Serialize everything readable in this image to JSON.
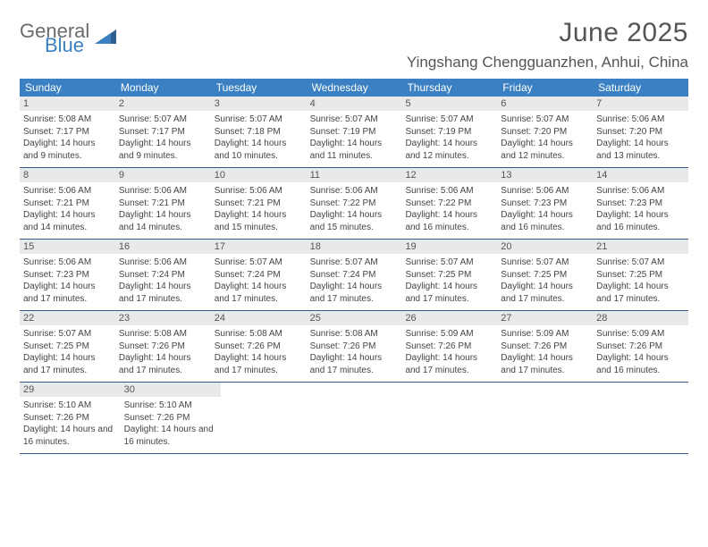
{
  "brand": {
    "line1": "General",
    "line2": "Blue"
  },
  "title": "June 2025",
  "location": "Yingshang Chengguanzhen, Anhui, China",
  "colors": {
    "header_bg": "#3a80c2",
    "header_text": "#ffffff",
    "daynum_bg": "#e9e9e9",
    "daynum_text": "#555555",
    "body_text": "#444444",
    "divider": "#2f5f8f",
    "page_bg": "#ffffff",
    "title_text": "#555555"
  },
  "weekdays": [
    "Sunday",
    "Monday",
    "Tuesday",
    "Wednesday",
    "Thursday",
    "Friday",
    "Saturday"
  ],
  "weeks": [
    [
      {
        "n": "1",
        "sr": "5:08 AM",
        "ss": "7:17 PM",
        "dl": "14 hours and 9 minutes."
      },
      {
        "n": "2",
        "sr": "5:07 AM",
        "ss": "7:17 PM",
        "dl": "14 hours and 9 minutes."
      },
      {
        "n": "3",
        "sr": "5:07 AM",
        "ss": "7:18 PM",
        "dl": "14 hours and 10 minutes."
      },
      {
        "n": "4",
        "sr": "5:07 AM",
        "ss": "7:19 PM",
        "dl": "14 hours and 11 minutes."
      },
      {
        "n": "5",
        "sr": "5:07 AM",
        "ss": "7:19 PM",
        "dl": "14 hours and 12 minutes."
      },
      {
        "n": "6",
        "sr": "5:07 AM",
        "ss": "7:20 PM",
        "dl": "14 hours and 12 minutes."
      },
      {
        "n": "7",
        "sr": "5:06 AM",
        "ss": "7:20 PM",
        "dl": "14 hours and 13 minutes."
      }
    ],
    [
      {
        "n": "8",
        "sr": "5:06 AM",
        "ss": "7:21 PM",
        "dl": "14 hours and 14 minutes."
      },
      {
        "n": "9",
        "sr": "5:06 AM",
        "ss": "7:21 PM",
        "dl": "14 hours and 14 minutes."
      },
      {
        "n": "10",
        "sr": "5:06 AM",
        "ss": "7:21 PM",
        "dl": "14 hours and 15 minutes."
      },
      {
        "n": "11",
        "sr": "5:06 AM",
        "ss": "7:22 PM",
        "dl": "14 hours and 15 minutes."
      },
      {
        "n": "12",
        "sr": "5:06 AM",
        "ss": "7:22 PM",
        "dl": "14 hours and 16 minutes."
      },
      {
        "n": "13",
        "sr": "5:06 AM",
        "ss": "7:23 PM",
        "dl": "14 hours and 16 minutes."
      },
      {
        "n": "14",
        "sr": "5:06 AM",
        "ss": "7:23 PM",
        "dl": "14 hours and 16 minutes."
      }
    ],
    [
      {
        "n": "15",
        "sr": "5:06 AM",
        "ss": "7:23 PM",
        "dl": "14 hours and 17 minutes."
      },
      {
        "n": "16",
        "sr": "5:06 AM",
        "ss": "7:24 PM",
        "dl": "14 hours and 17 minutes."
      },
      {
        "n": "17",
        "sr": "5:07 AM",
        "ss": "7:24 PM",
        "dl": "14 hours and 17 minutes."
      },
      {
        "n": "18",
        "sr": "5:07 AM",
        "ss": "7:24 PM",
        "dl": "14 hours and 17 minutes."
      },
      {
        "n": "19",
        "sr": "5:07 AM",
        "ss": "7:25 PM",
        "dl": "14 hours and 17 minutes."
      },
      {
        "n": "20",
        "sr": "5:07 AM",
        "ss": "7:25 PM",
        "dl": "14 hours and 17 minutes."
      },
      {
        "n": "21",
        "sr": "5:07 AM",
        "ss": "7:25 PM",
        "dl": "14 hours and 17 minutes."
      }
    ],
    [
      {
        "n": "22",
        "sr": "5:07 AM",
        "ss": "7:25 PM",
        "dl": "14 hours and 17 minutes."
      },
      {
        "n": "23",
        "sr": "5:08 AM",
        "ss": "7:26 PM",
        "dl": "14 hours and 17 minutes."
      },
      {
        "n": "24",
        "sr": "5:08 AM",
        "ss": "7:26 PM",
        "dl": "14 hours and 17 minutes."
      },
      {
        "n": "25",
        "sr": "5:08 AM",
        "ss": "7:26 PM",
        "dl": "14 hours and 17 minutes."
      },
      {
        "n": "26",
        "sr": "5:09 AM",
        "ss": "7:26 PM",
        "dl": "14 hours and 17 minutes."
      },
      {
        "n": "27",
        "sr": "5:09 AM",
        "ss": "7:26 PM",
        "dl": "14 hours and 17 minutes."
      },
      {
        "n": "28",
        "sr": "5:09 AM",
        "ss": "7:26 PM",
        "dl": "14 hours and 16 minutes."
      }
    ],
    [
      {
        "n": "29",
        "sr": "5:10 AM",
        "ss": "7:26 PM",
        "dl": "14 hours and 16 minutes."
      },
      {
        "n": "30",
        "sr": "5:10 AM",
        "ss": "7:26 PM",
        "dl": "14 hours and 16 minutes."
      },
      null,
      null,
      null,
      null,
      null
    ]
  ],
  "labels": {
    "sunrise": "Sunrise:",
    "sunset": "Sunset:",
    "daylight": "Daylight:"
  }
}
